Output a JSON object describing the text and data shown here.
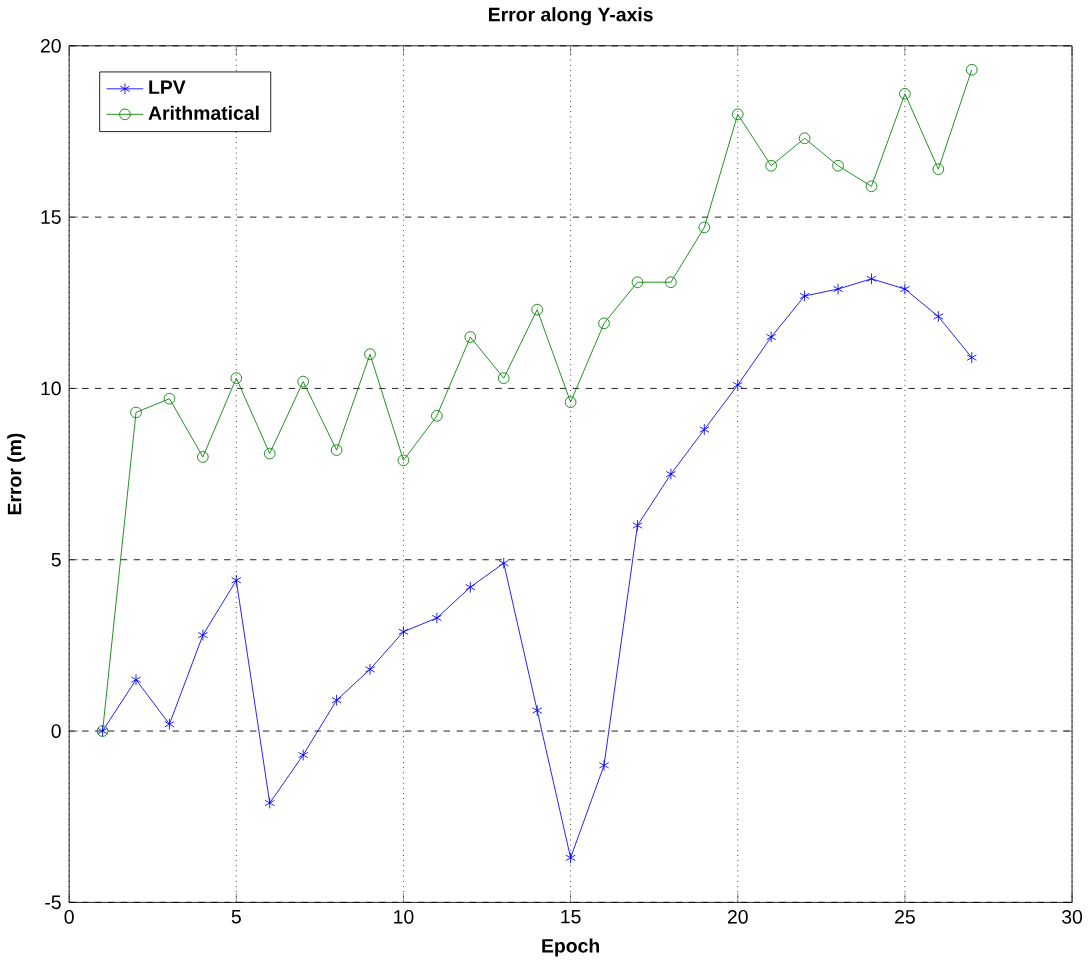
{
  "chart_data": {
    "type": "line",
    "title": "Error along Y-axis",
    "xlabel": "Epoch",
    "ylabel": "Error (m)",
    "x": [
      1,
      2,
      3,
      4,
      5,
      6,
      7,
      8,
      9,
      10,
      11,
      12,
      13,
      14,
      15,
      16,
      17,
      18,
      19,
      20,
      21,
      22,
      23,
      24,
      25,
      26,
      27
    ],
    "series": [
      {
        "name": "LPV",
        "color": "#0000ff",
        "marker": "cross",
        "values": [
          0,
          1.5,
          0.2,
          2.8,
          4.4,
          -2.1,
          -0.7,
          0.9,
          1.8,
          2.9,
          3.3,
          4.2,
          4.9,
          0.6,
          -3.7,
          -1.0,
          6.0,
          7.5,
          8.8,
          10.1,
          11.5,
          12.7,
          12.9,
          13.2,
          12.9,
          12.1,
          10.9
        ]
      },
      {
        "name": "Arithmatical",
        "color": "#008000",
        "marker": "circle",
        "values": [
          0,
          9.3,
          9.7,
          8.0,
          10.3,
          8.1,
          10.2,
          8.2,
          11.0,
          7.9,
          9.2,
          11.5,
          10.3,
          12.3,
          9.6,
          11.9,
          13.1,
          13.1,
          14.7,
          18.0,
          16.5,
          17.3,
          16.5,
          15.9,
          18.6,
          16.4,
          19.3
        ]
      }
    ],
    "xlim": [
      0,
      30
    ],
    "xticks": [
      0,
      5,
      10,
      15,
      20,
      25,
      30
    ],
    "ylim": [
      -5,
      20
    ],
    "yticks": [
      -5,
      0,
      5,
      10,
      15,
      20
    ],
    "grid": true,
    "legend": "top left",
    "line_style": "solid"
  }
}
